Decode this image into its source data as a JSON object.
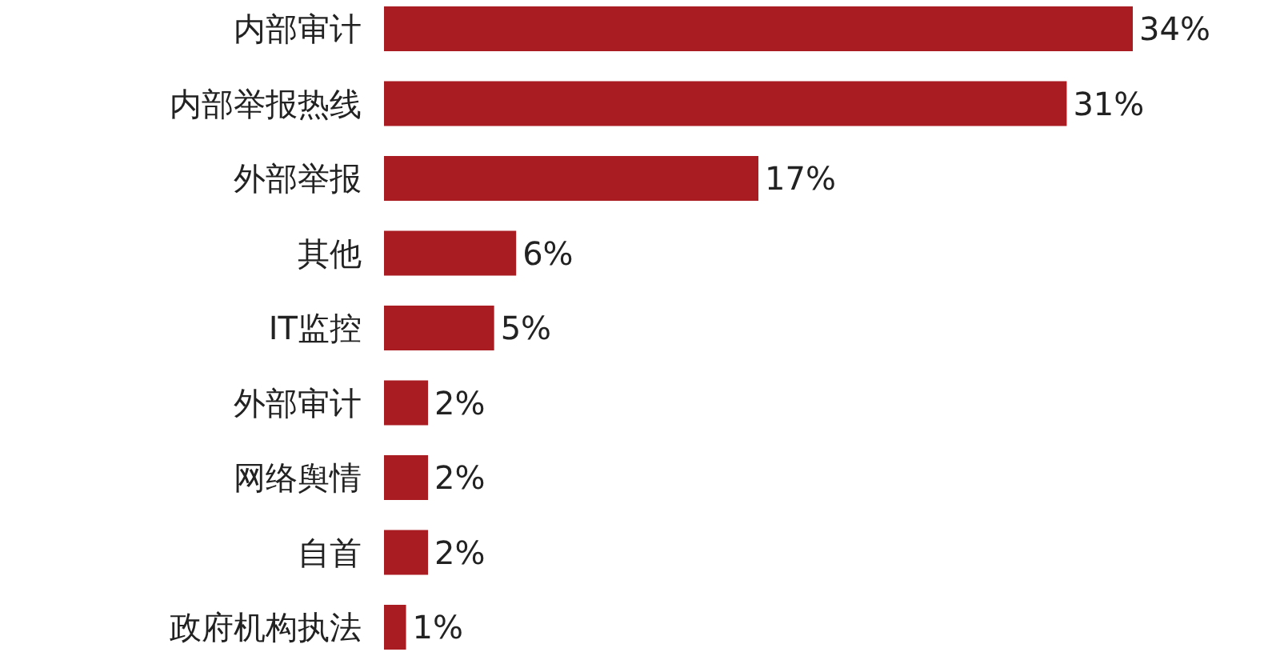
{
  "chart_data": {
    "type": "bar",
    "orientation": "horizontal",
    "categories": [
      "内部审计",
      "内部举报热线",
      "外部举报",
      "其他",
      "IT监控",
      "外部审计",
      "网络舆情",
      "自首",
      "政府机构执法"
    ],
    "values": [
      34,
      31,
      17,
      6,
      5,
      2,
      2,
      2,
      1
    ],
    "value_labels": [
      "34%",
      "31%",
      "17%",
      "6%",
      "5%",
      "2%",
      "2%",
      "2%",
      "1%"
    ],
    "color": "#a81c22"
  }
}
